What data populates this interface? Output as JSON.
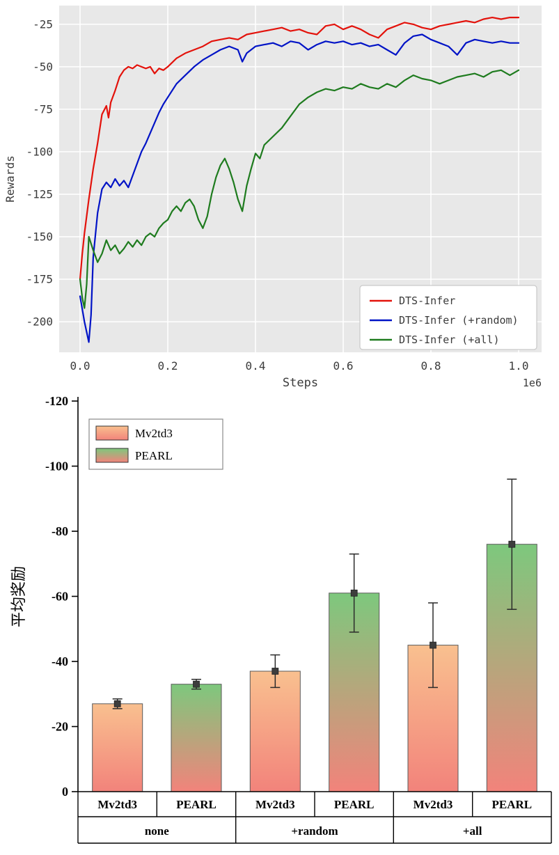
{
  "figure": {
    "background": "#ffffff"
  },
  "chart_data": [
    {
      "type": "line",
      "title": "",
      "xlabel": "Steps",
      "ylabel": "Rewards",
      "x_offset_label": "1e6",
      "plot_bg": "#e8e8e8",
      "grid": true,
      "legend_position": "lower right",
      "xlim": [
        0,
        1.0
      ],
      "ylim": [
        -218,
        -14
      ],
      "xticks": [
        0,
        0.2,
        0.4,
        0.6,
        0.8,
        1.0
      ],
      "xtick_labels": [
        "0.0",
        "0.2",
        "0.4",
        "0.6",
        "0.8",
        "1.0"
      ],
      "yticks": [
        -25,
        -50,
        -75,
        -100,
        -125,
        -150,
        -175,
        -200
      ],
      "ytick_labels": [
        "-25",
        "-50",
        "-75",
        "-100",
        "-125",
        "-150",
        "-175",
        "-200"
      ],
      "series": [
        {
          "name": "DTS-Infer",
          "color": "#e3120b",
          "points": [
            [
              0,
              -175
            ],
            [
              0.005,
              -160
            ],
            [
              0.01,
              -148
            ],
            [
              0.02,
              -128
            ],
            [
              0.03,
              -110
            ],
            [
              0.04,
              -95
            ],
            [
              0.05,
              -78
            ],
            [
              0.06,
              -73
            ],
            [
              0.065,
              -80
            ],
            [
              0.07,
              -71
            ],
            [
              0.08,
              -64
            ],
            [
              0.09,
              -56
            ],
            [
              0.1,
              -52
            ],
            [
              0.11,
              -50
            ],
            [
              0.12,
              -51
            ],
            [
              0.13,
              -49
            ],
            [
              0.14,
              -50
            ],
            [
              0.15,
              -51
            ],
            [
              0.16,
              -50
            ],
            [
              0.17,
              -54
            ],
            [
              0.18,
              -51
            ],
            [
              0.19,
              -52
            ],
            [
              0.2,
              -50
            ],
            [
              0.22,
              -45
            ],
            [
              0.24,
              -42
            ],
            [
              0.26,
              -40
            ],
            [
              0.28,
              -38
            ],
            [
              0.3,
              -35
            ],
            [
              0.32,
              -34
            ],
            [
              0.34,
              -33
            ],
            [
              0.36,
              -34
            ],
            [
              0.38,
              -31
            ],
            [
              0.4,
              -30
            ],
            [
              0.42,
              -29
            ],
            [
              0.44,
              -28
            ],
            [
              0.46,
              -27
            ],
            [
              0.48,
              -29
            ],
            [
              0.5,
              -28
            ],
            [
              0.52,
              -30
            ],
            [
              0.54,
              -31
            ],
            [
              0.56,
              -26
            ],
            [
              0.58,
              -25
            ],
            [
              0.6,
              -28
            ],
            [
              0.62,
              -26
            ],
            [
              0.64,
              -28
            ],
            [
              0.66,
              -31
            ],
            [
              0.68,
              -33
            ],
            [
              0.7,
              -28
            ],
            [
              0.72,
              -26
            ],
            [
              0.74,
              -24
            ],
            [
              0.76,
              -25
            ],
            [
              0.78,
              -27
            ],
            [
              0.8,
              -28
            ],
            [
              0.82,
              -26
            ],
            [
              0.84,
              -25
            ],
            [
              0.86,
              -24
            ],
            [
              0.88,
              -23
            ],
            [
              0.9,
              -24
            ],
            [
              0.92,
              -22
            ],
            [
              0.94,
              -21
            ],
            [
              0.96,
              -22
            ],
            [
              0.98,
              -21
            ],
            [
              1,
              -21
            ]
          ]
        },
        {
          "name": "DTS-Infer (+random)",
          "color": "#0013c6",
          "points": [
            [
              0,
              -185
            ],
            [
              0.01,
              -200
            ],
            [
              0.02,
              -212
            ],
            [
              0.025,
              -196
            ],
            [
              0.03,
              -162
            ],
            [
              0.04,
              -136
            ],
            [
              0.05,
              -122
            ],
            [
              0.06,
              -118
            ],
            [
              0.07,
              -121
            ],
            [
              0.08,
              -116
            ],
            [
              0.09,
              -120
            ],
            [
              0.1,
              -117
            ],
            [
              0.11,
              -121
            ],
            [
              0.12,
              -114
            ],
            [
              0.13,
              -107
            ],
            [
              0.14,
              -100
            ],
            [
              0.15,
              -95
            ],
            [
              0.16,
              -89
            ],
            [
              0.17,
              -83
            ],
            [
              0.18,
              -77
            ],
            [
              0.19,
              -72
            ],
            [
              0.2,
              -68
            ],
            [
              0.22,
              -60
            ],
            [
              0.24,
              -55
            ],
            [
              0.26,
              -50
            ],
            [
              0.28,
              -46
            ],
            [
              0.3,
              -43
            ],
            [
              0.32,
              -40
            ],
            [
              0.34,
              -38
            ],
            [
              0.36,
              -40
            ],
            [
              0.37,
              -47
            ],
            [
              0.38,
              -42
            ],
            [
              0.4,
              -38
            ],
            [
              0.42,
              -37
            ],
            [
              0.44,
              -36
            ],
            [
              0.46,
              -38
            ],
            [
              0.48,
              -35
            ],
            [
              0.5,
              -36
            ],
            [
              0.52,
              -40
            ],
            [
              0.54,
              -37
            ],
            [
              0.56,
              -35
            ],
            [
              0.58,
              -36
            ],
            [
              0.6,
              -35
            ],
            [
              0.62,
              -37
            ],
            [
              0.64,
              -36
            ],
            [
              0.66,
              -38
            ],
            [
              0.68,
              -37
            ],
            [
              0.7,
              -40
            ],
            [
              0.72,
              -43
            ],
            [
              0.74,
              -36
            ],
            [
              0.76,
              -32
            ],
            [
              0.78,
              -31
            ],
            [
              0.8,
              -34
            ],
            [
              0.82,
              -36
            ],
            [
              0.84,
              -38
            ],
            [
              0.86,
              -43
            ],
            [
              0.88,
              -36
            ],
            [
              0.9,
              -34
            ],
            [
              0.92,
              -35
            ],
            [
              0.94,
              -36
            ],
            [
              0.96,
              -35
            ],
            [
              0.98,
              -36
            ],
            [
              1,
              -36
            ]
          ]
        },
        {
          "name": "DTS-Infer (+all)",
          "color": "#1e7b1e",
          "points": [
            [
              0,
              -175
            ],
            [
              0.005,
              -186
            ],
            [
              0.01,
              -192
            ],
            [
              0.015,
              -178
            ],
            [
              0.02,
              -150
            ],
            [
              0.03,
              -158
            ],
            [
              0.04,
              -165
            ],
            [
              0.05,
              -160
            ],
            [
              0.06,
              -152
            ],
            [
              0.07,
              -158
            ],
            [
              0.08,
              -155
            ],
            [
              0.09,
              -160
            ],
            [
              0.1,
              -157
            ],
            [
              0.11,
              -153
            ],
            [
              0.12,
              -156
            ],
            [
              0.13,
              -152
            ],
            [
              0.14,
              -155
            ],
            [
              0.15,
              -150
            ],
            [
              0.16,
              -148
            ],
            [
              0.17,
              -150
            ],
            [
              0.18,
              -145
            ],
            [
              0.19,
              -142
            ],
            [
              0.2,
              -140
            ],
            [
              0.21,
              -135
            ],
            [
              0.22,
              -132
            ],
            [
              0.23,
              -135
            ],
            [
              0.24,
              -130
            ],
            [
              0.25,
              -128
            ],
            [
              0.26,
              -132
            ],
            [
              0.27,
              -140
            ],
            [
              0.28,
              -145
            ],
            [
              0.29,
              -138
            ],
            [
              0.3,
              -125
            ],
            [
              0.31,
              -115
            ],
            [
              0.32,
              -108
            ],
            [
              0.33,
              -104
            ],
            [
              0.34,
              -110
            ],
            [
              0.35,
              -118
            ],
            [
              0.36,
              -128
            ],
            [
              0.37,
              -135
            ],
            [
              0.38,
              -120
            ],
            [
              0.39,
              -110
            ],
            [
              0.4,
              -101
            ],
            [
              0.41,
              -104
            ],
            [
              0.42,
              -96
            ],
            [
              0.44,
              -91
            ],
            [
              0.46,
              -86
            ],
            [
              0.48,
              -79
            ],
            [
              0.5,
              -72
            ],
            [
              0.52,
              -68
            ],
            [
              0.54,
              -65
            ],
            [
              0.56,
              -63
            ],
            [
              0.58,
              -64
            ],
            [
              0.6,
              -62
            ],
            [
              0.62,
              -63
            ],
            [
              0.64,
              -60
            ],
            [
              0.66,
              -62
            ],
            [
              0.68,
              -63
            ],
            [
              0.7,
              -60
            ],
            [
              0.72,
              -62
            ],
            [
              0.74,
              -58
            ],
            [
              0.76,
              -55
            ],
            [
              0.78,
              -57
            ],
            [
              0.8,
              -58
            ],
            [
              0.82,
              -60
            ],
            [
              0.84,
              -58
            ],
            [
              0.86,
              -56
            ],
            [
              0.88,
              -55
            ],
            [
              0.9,
              -54
            ],
            [
              0.92,
              -56
            ],
            [
              0.94,
              -53
            ],
            [
              0.96,
              -52
            ],
            [
              0.98,
              -55
            ],
            [
              1,
              -52
            ]
          ]
        }
      ]
    },
    {
      "type": "bar",
      "title": "",
      "xlabel": "",
      "ylabel": "平均奖励",
      "ylim": [
        0,
        -120
      ],
      "yticks": [
        0,
        -20,
        -40,
        -60,
        -80,
        -100,
        -120
      ],
      "ytick_labels": [
        "0",
        "-20",
        "-40",
        "-60",
        "-80",
        "-100",
        "-120"
      ],
      "groups": [
        "none",
        "+random",
        "+all"
      ],
      "bar_labels": [
        "Mv2td3",
        "PEARL",
        "Mv2td3",
        "PEARL",
        "Mv2td3",
        "PEARL"
      ],
      "legend_position": "upper left",
      "error_color": "#2b2b2b",
      "marker_color": "#3d3d3d",
      "series": [
        {
          "name": "Mv2td3",
          "color_top": "#f9c08f",
          "color_bottom": "#f2837b",
          "values": [
            -27,
            -37,
            -45
          ],
          "errors": [
            1.5,
            5,
            13
          ]
        },
        {
          "name": "PEARL",
          "color_top": "#7dc87d",
          "color_bottom": "#f2837b",
          "values": [
            -33,
            -61,
            -76
          ],
          "errors": [
            1.5,
            12,
            20
          ]
        }
      ]
    }
  ]
}
